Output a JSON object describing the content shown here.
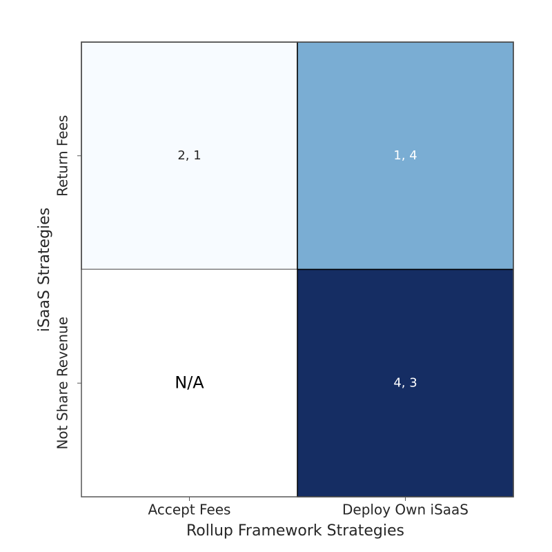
{
  "chart_data": {
    "type": "heatmap",
    "x_label": "Rollup Framework Strategies",
    "y_label": "iSaaS Strategies",
    "x_categories": [
      "Accept Fees",
      "Deploy Own iSaaS"
    ],
    "y_categories": [
      "Return Fees",
      "Not Share Revenue"
    ],
    "cells": [
      [
        {
          "label": "2, 1",
          "color": "#f7fbff",
          "text_color": "#262626"
        },
        {
          "label": "1, 4",
          "color": "#7aadd3",
          "text_color": "#ffffff"
        }
      ],
      [
        {
          "label": "N/A",
          "color": null,
          "text_color": "#000000"
        },
        {
          "label": "4, 3",
          "color": "#152d63",
          "text_color": "#ffffff"
        }
      ]
    ]
  }
}
